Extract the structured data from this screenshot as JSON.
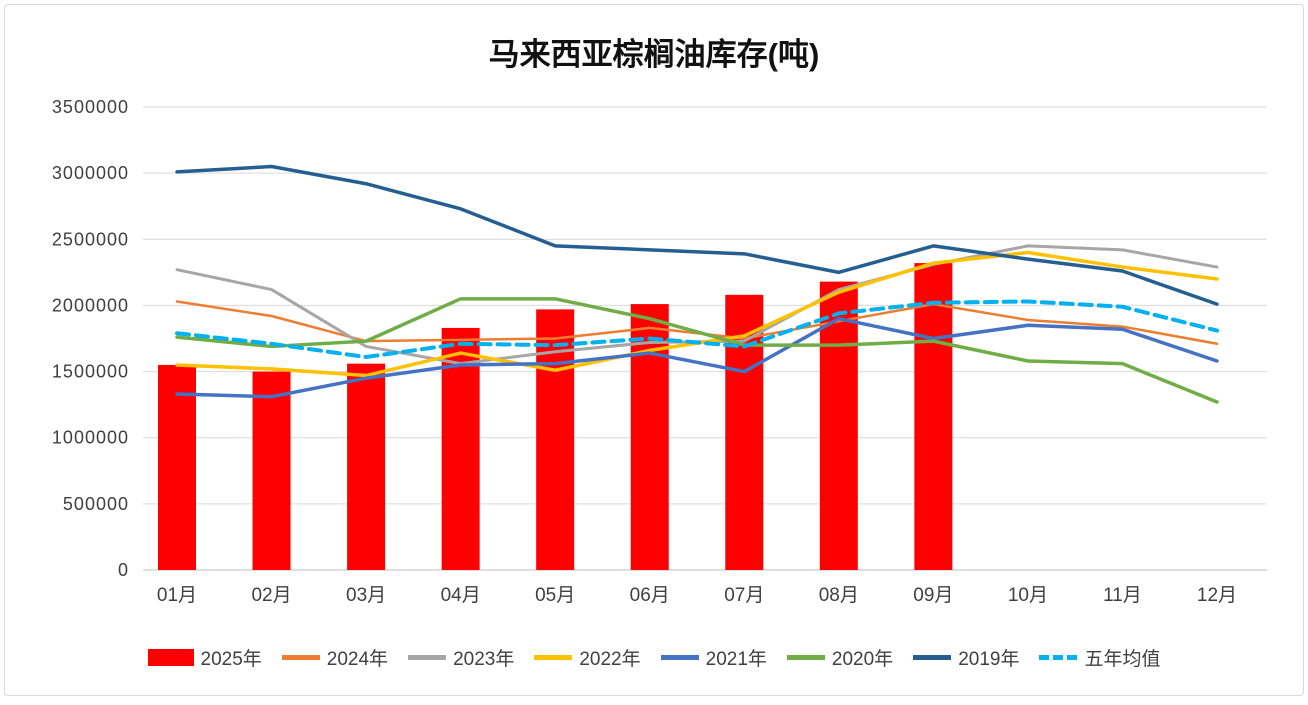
{
  "chart_data": {
    "type": "bar",
    "subtype": "combo bar + line",
    "title": "马来西亚棕榈油库存(吨)",
    "categories": [
      "01月",
      "02月",
      "03月",
      "04月",
      "05月",
      "06月",
      "07月",
      "08月",
      "09月",
      "10月",
      "11月",
      "12月"
    ],
    "ylim": [
      0,
      3500000
    ],
    "y_tick_step": 500000,
    "y_tick_labels": [
      "0",
      "500000",
      "1000000",
      "1500000",
      "2000000",
      "2500000",
      "3000000",
      "3500000"
    ],
    "grid": true,
    "legend_position": "bottom",
    "grid_color": "#d9d9d9",
    "axis_color": "#bfbfbf",
    "tick_label_color": "#404040",
    "bar_series": {
      "name": "2025年",
      "color": "#ff0000",
      "values": [
        1550000,
        1500000,
        1560000,
        1830000,
        1970000,
        2010000,
        2080000,
        2180000,
        2320000,
        null,
        null,
        null
      ]
    },
    "line_series": [
      {
        "name": "2024年",
        "color": "#ed7d31",
        "dashed": false,
        "width": 2.5,
        "values": [
          2030000,
          1920000,
          1730000,
          1740000,
          1750000,
          1830000,
          1750000,
          1880000,
          2010000,
          1890000,
          1840000,
          1710000
        ]
      },
      {
        "name": "2023年",
        "color": "#a6a6a6",
        "dashed": false,
        "width": 3,
        "values": [
          2270000,
          2120000,
          1690000,
          1560000,
          1650000,
          1720000,
          1730000,
          2120000,
          2310000,
          2450000,
          2420000,
          2290000
        ]
      },
      {
        "name": "2022年",
        "color": "#ffc000",
        "dashed": false,
        "width": 3.5,
        "values": [
          1550000,
          1520000,
          1470000,
          1640000,
          1510000,
          1660000,
          1770000,
          2100000,
          2320000,
          2400000,
          2290000,
          2200000
        ]
      },
      {
        "name": "2021年",
        "color": "#4472c4",
        "dashed": false,
        "width": 3.5,
        "values": [
          1330000,
          1310000,
          1450000,
          1550000,
          1560000,
          1640000,
          1500000,
          1900000,
          1750000,
          1850000,
          1820000,
          1580000
        ]
      },
      {
        "name": "2020年",
        "color": "#70ad47",
        "dashed": false,
        "width": 3.5,
        "values": [
          1760000,
          1690000,
          1730000,
          2050000,
          2050000,
          1900000,
          1700000,
          1700000,
          1730000,
          1580000,
          1560000,
          1270000
        ]
      },
      {
        "name": "2019年",
        "color": "#255e91",
        "dashed": false,
        "width": 3.5,
        "values": [
          3010000,
          3050000,
          2920000,
          2730000,
          2450000,
          2420000,
          2390000,
          2250000,
          2450000,
          2350000,
          2260000,
          2010000
        ]
      },
      {
        "name": "五年均值",
        "color": "#00b0f0",
        "dashed": true,
        "width": 4,
        "values": [
          1790000,
          1710000,
          1610000,
          1710000,
          1700000,
          1750000,
          1690000,
          1940000,
          2020000,
          2030000,
          1990000,
          1810000
        ]
      }
    ]
  }
}
